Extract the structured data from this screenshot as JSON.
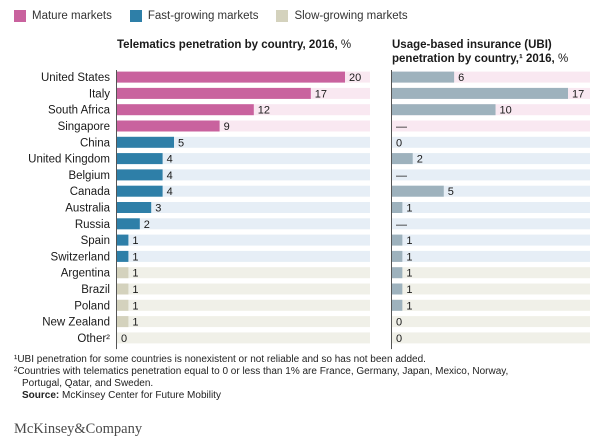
{
  "legend": [
    {
      "label": "Mature markets",
      "color": "#c9629e"
    },
    {
      "label": "Fast-growing markets",
      "color": "#2e7fa8"
    },
    {
      "label": "Slow-growing markets",
      "color": "#d4d2bd"
    }
  ],
  "row_bg_colors": {
    "mature": "#f9e8f1",
    "fast": "#e6eef6",
    "slow": "#f0f0e8"
  },
  "ubi_bar_color": "#9eb2bd",
  "footnotes": {
    "fn1": "¹UBI penetration for some countries is nonexistent or not reliable and so has not been added.",
    "fn2_line1": "²Countries with telematics penetration equal to 0 or less than 1% are France, Germany, Japan, Mexico, Norway,",
    "fn2_line2": "Portugal, Qatar, and Sweden.",
    "source_label": "Source:",
    "source_text": " McKinsey Center for Future Mobility"
  },
  "brand": "McKinsey&Company",
  "chart_data": [
    {
      "type": "bar",
      "orientation": "horizontal",
      "title": "Telematics penetration by country, 2016,",
      "title_unit": "%",
      "categories": [
        "United States",
        "Italy",
        "South Africa",
        "Singapore",
        "China",
        "United Kingdom",
        "Belgium",
        "Canada",
        "Australia",
        "Russia",
        "Spain",
        "Switzerland",
        "Argentina",
        "Brazil",
        "Poland",
        "New Zealand",
        "Other²"
      ],
      "groups": [
        "mature",
        "mature",
        "mature",
        "mature",
        "fast",
        "fast",
        "fast",
        "fast",
        "fast",
        "fast",
        "fast",
        "fast",
        "slow",
        "slow",
        "slow",
        "slow",
        "slow"
      ],
      "values": [
        20,
        17,
        12,
        9,
        5,
        4,
        4,
        4,
        3,
        2,
        1,
        1,
        1,
        1,
        1,
        1,
        0
      ],
      "labels": [
        "20",
        "17",
        "12",
        "9",
        "5",
        "4",
        "4",
        "4",
        "3",
        "2",
        "1",
        "1",
        "1",
        "1",
        "1",
        "1",
        "0"
      ],
      "xlim": [
        0,
        20
      ]
    },
    {
      "type": "bar",
      "orientation": "horizontal",
      "title_line1": "Usage-based insurance (UBI)",
      "title_line2": "penetration by country,¹ 2016,",
      "title_unit": "%",
      "categories": [
        "United States",
        "Italy",
        "South Africa",
        "Singapore",
        "China",
        "United Kingdom",
        "Belgium",
        "Canada",
        "Australia",
        "Russia",
        "Spain",
        "Switzerland",
        "Argentina",
        "Brazil",
        "Poland",
        "New Zealand",
        "Other²"
      ],
      "values": [
        6,
        17,
        10,
        null,
        0,
        2,
        null,
        5,
        1,
        null,
        1,
        1,
        1,
        1,
        1,
        0,
        0
      ],
      "labels": [
        "6",
        "17",
        "10",
        "—",
        "0",
        "2",
        "—",
        "5",
        "1",
        "—",
        "1",
        "1",
        "1",
        "1",
        "1",
        "0",
        "0"
      ],
      "xlim": [
        0,
        17
      ]
    }
  ]
}
